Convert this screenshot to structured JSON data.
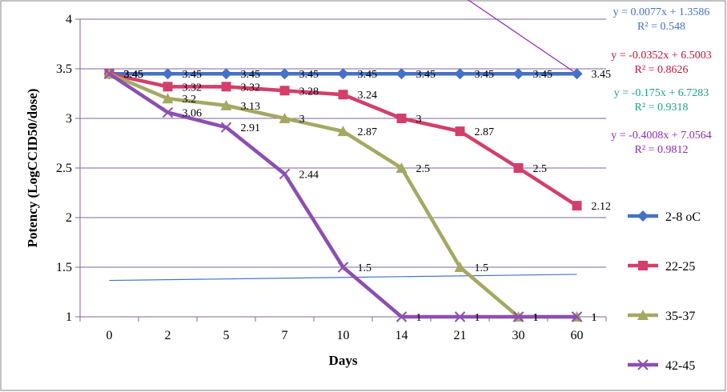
{
  "chart_data": {
    "type": "line",
    "ylabel": "Potency (LogCCID50/dose)",
    "xlabel": "Days",
    "categories": [
      "0",
      "2",
      "5",
      "7",
      "10",
      "14",
      "21",
      "30",
      "60"
    ],
    "ylim": [
      1,
      4
    ],
    "yticks": [
      "1",
      "1.5",
      "2",
      "2.5",
      "3",
      "3.5",
      "4"
    ],
    "grid": true,
    "legend_position": "right",
    "series": [
      {
        "name": "2-8 oC",
        "color": "#4472C4",
        "marker": "diamond",
        "values": [
          3.45,
          3.45,
          3.45,
          3.45,
          3.45,
          3.45,
          3.45,
          3.45,
          3.45
        ],
        "labels": [
          "3.45",
          "3.45",
          "3.45",
          "3.45",
          "3.45",
          "3.45",
          "3.45",
          "3.45",
          "3.45"
        ]
      },
      {
        "name": "22-25",
        "color": "#D33F6A",
        "marker": "square",
        "values": [
          3.45,
          3.32,
          3.32,
          3.28,
          3.24,
          3,
          2.87,
          2.5,
          2.12
        ],
        "labels": [
          "3.45",
          "3.32",
          "3.32",
          "3.28",
          "3.24",
          "3",
          "2.87",
          "2.5",
          "2.12"
        ]
      },
      {
        "name": "35-37",
        "color": "#A5A862",
        "marker": "triangle",
        "values": [
          3.45,
          3.2,
          3.13,
          3,
          2.87,
          2.5,
          1.5,
          1,
          1
        ],
        "labels": [
          "3.45",
          "3.2",
          "3.13",
          "3",
          "2.87",
          "2.5",
          "1.5",
          "1",
          "1"
        ]
      },
      {
        "name": "42-45",
        "color": "#8C4FB0",
        "marker": "x",
        "values": [
          3.45,
          3.06,
          2.91,
          2.44,
          1.5,
          1,
          1,
          1,
          1
        ],
        "labels": [
          "3.45",
          "3.06",
          "2.91",
          "2.44",
          "1.5",
          "1",
          "1",
          "1",
          "1"
        ]
      }
    ],
    "trendlines": [
      {
        "series": "2-8 oC",
        "color": "#4472C4",
        "slope": 0.0077,
        "intercept": 1.3586,
        "equation": "y = 0.0077x + 1.3586",
        "r2": "R² = 0.548"
      },
      {
        "series": "22-25",
        "color": "#C0143C",
        "slope": -0.0352,
        "intercept": 6.5003,
        "equation": "y = -0.0352x + 6.5003",
        "r2": "R² = 0.8626"
      },
      {
        "series": "35-37",
        "color": "#1E9E8A",
        "slope": -0.175,
        "intercept": 6.7283,
        "equation": "y = -0.175x + 6.7283",
        "r2": "R² = 0.9318"
      },
      {
        "series": "42-45",
        "color": "#8E2AB5",
        "slope": -0.4008,
        "intercept": 7.0564,
        "equation": "y = -0.4008x + 7.0564",
        "r2": "R² = 0.9812"
      }
    ]
  }
}
